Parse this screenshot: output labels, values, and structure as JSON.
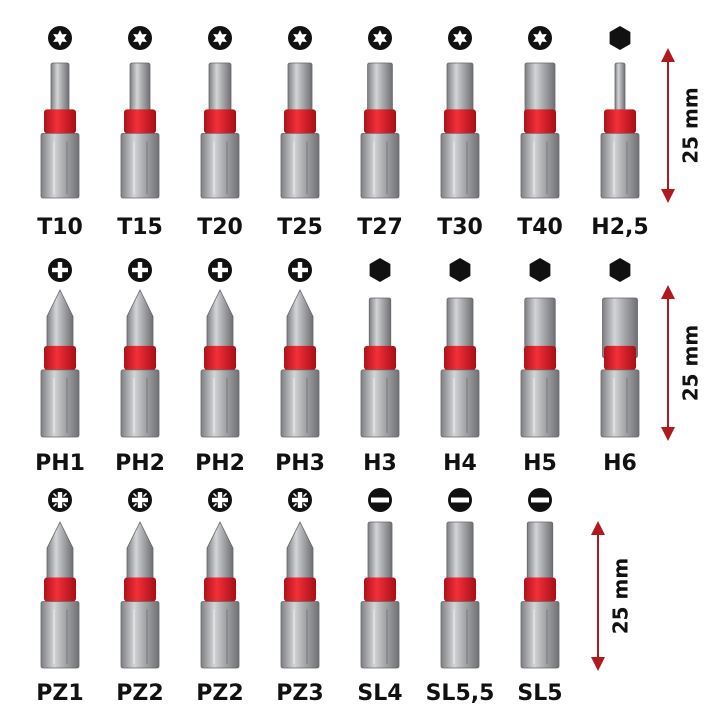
{
  "rows": [
    {
      "items": [
        {
          "label": "T10"
        },
        {
          "label": "T15"
        },
        {
          "label": "T20"
        },
        {
          "label": "T25"
        },
        {
          "label": "T27"
        },
        {
          "label": "T30"
        },
        {
          "label": "T40"
        },
        {
          "label": "H2,5"
        }
      ],
      "dimension": "25 mm"
    },
    {
      "items": [
        {
          "label": "PH1"
        },
        {
          "label": "PH2"
        },
        {
          "label": "PH2"
        },
        {
          "label": "PH3"
        },
        {
          "label": "H3"
        },
        {
          "label": "H4"
        },
        {
          "label": "H5"
        },
        {
          "label": "H6"
        }
      ],
      "dimension": "25 mm"
    },
    {
      "items": [
        {
          "label": "PZ1"
        },
        {
          "label": "PZ2"
        },
        {
          "label": "PZ2"
        },
        {
          "label": "PZ3"
        },
        {
          "label": "SL4"
        },
        {
          "label": "SL5,5"
        },
        {
          "label": "SL5"
        }
      ],
      "dimension": "25 mm"
    }
  ]
}
